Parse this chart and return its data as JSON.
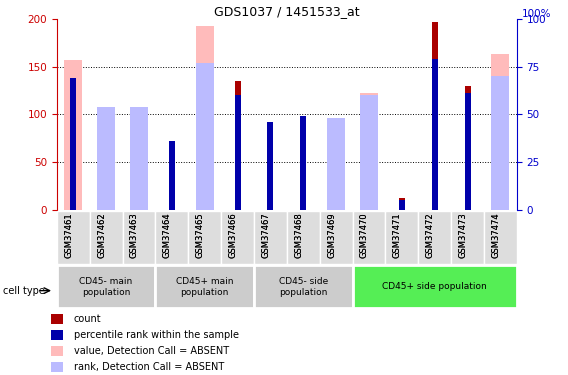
{
  "title": "GDS1037 / 1451533_at",
  "samples": [
    "GSM37461",
    "GSM37462",
    "GSM37463",
    "GSM37464",
    "GSM37465",
    "GSM37466",
    "GSM37467",
    "GSM37468",
    "GSM37469",
    "GSM37470",
    "GSM37471",
    "GSM37472",
    "GSM37473",
    "GSM37474"
  ],
  "count_values": [
    0,
    0,
    0,
    62,
    0,
    135,
    75,
    85,
    0,
    0,
    13,
    197,
    130,
    0
  ],
  "rank_values": [
    69,
    0,
    0,
    36,
    0,
    60,
    46,
    49,
    0,
    0,
    5,
    79,
    61,
    0
  ],
  "absent_value_values": [
    157,
    100,
    100,
    0,
    192,
    0,
    0,
    0,
    88,
    122,
    0,
    0,
    0,
    163
  ],
  "absent_rank_values": [
    0,
    54,
    54,
    0,
    77,
    0,
    0,
    0,
    48,
    60,
    0,
    0,
    0,
    70
  ],
  "count_color": "#aa0000",
  "rank_color": "#0000aa",
  "absent_value_color": "#ffbbbb",
  "absent_rank_color": "#bbbbff",
  "ylim_left": [
    0,
    200
  ],
  "ylim_right": [
    0,
    100
  ],
  "yticks_left": [
    0,
    50,
    100,
    150,
    200
  ],
  "yticks_right": [
    0,
    25,
    50,
    75,
    100
  ],
  "groups_data": [
    {
      "label": "CD45- main\npopulation",
      "indices": [
        0,
        1,
        2
      ],
      "color": "#cccccc"
    },
    {
      "label": "CD45+ main\npopulation",
      "indices": [
        3,
        4,
        5
      ],
      "color": "#cccccc"
    },
    {
      "label": "CD45- side\npopulation",
      "indices": [
        6,
        7,
        8
      ],
      "color": "#cccccc"
    },
    {
      "label": "CD45+ side population",
      "indices": [
        9,
        10,
        11,
        12,
        13
      ],
      "color": "#55ee55"
    }
  ],
  "left_axis_color": "#cc0000",
  "right_axis_color": "#0000cc",
  "legend_items": [
    {
      "color": "#aa0000",
      "label": "count"
    },
    {
      "color": "#0000aa",
      "label": "percentile rank within the sample"
    },
    {
      "color": "#ffbbbb",
      "label": "value, Detection Call = ABSENT"
    },
    {
      "color": "#bbbbff",
      "label": "rank, Detection Call = ABSENT"
    }
  ]
}
